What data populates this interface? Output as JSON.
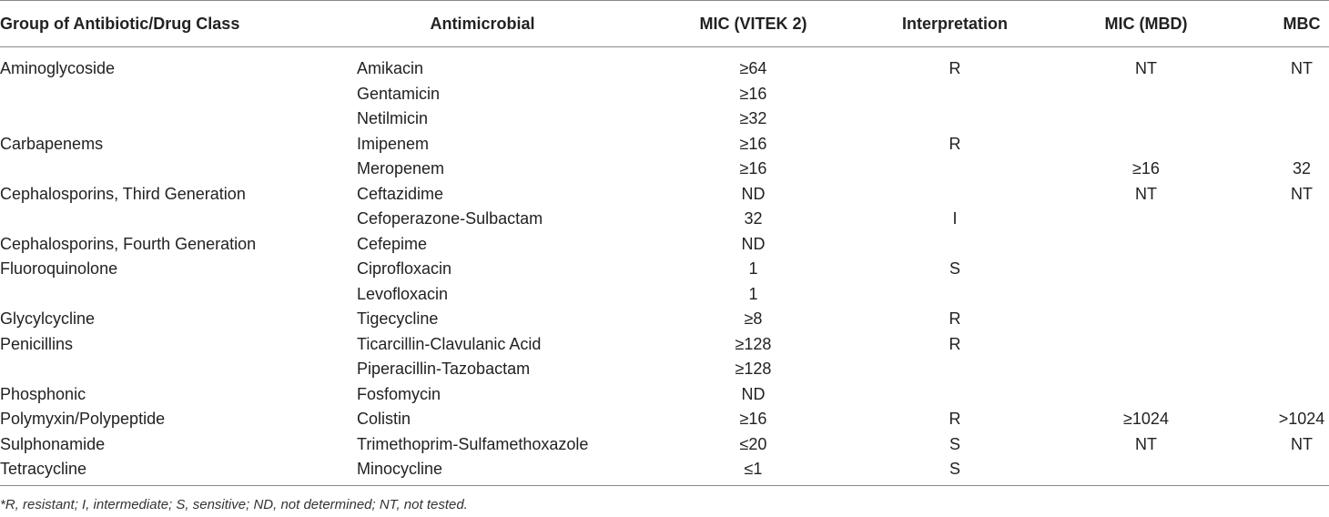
{
  "table": {
    "header": [
      "Group of Antibiotic/Drug Class",
      "Antimicrobial",
      "MIC (VITEK 2)",
      "Interpretation",
      "MIC (MBD)",
      "MBC"
    ],
    "rows": [
      [
        "Aminoglycoside",
        "Amikacin",
        "≥64",
        "R",
        "NT",
        "NT"
      ],
      [
        null,
        "Gentamicin",
        "≥16",
        null,
        null,
        null
      ],
      [
        null,
        "Netilmicin",
        "≥32",
        null,
        null,
        null
      ],
      [
        "Carbapenems",
        "Imipenem",
        "≥16",
        "R",
        null,
        null
      ],
      [
        null,
        "Meropenem",
        "≥16",
        null,
        "≥16",
        "32"
      ],
      [
        "Cephalosporins, Third Generation",
        "Ceftazidime",
        "ND",
        null,
        "NT",
        "NT"
      ],
      [
        null,
        "Cefoperazone-Sulbactam",
        "32",
        "I",
        null,
        null
      ],
      [
        "Cephalosporins, Fourth Generation",
        "Cefepime",
        "ND",
        null,
        null,
        null
      ],
      [
        "Fluoroquinolone",
        "Ciprofloxacin",
        "1",
        "S",
        null,
        null
      ],
      [
        null,
        "Levofloxacin",
        "1",
        null,
        null,
        null
      ],
      [
        "Glycylcycline",
        "Tigecycline",
        "≥8",
        "R",
        null,
        null
      ],
      [
        "Penicillins",
        "Ticarcillin-Clavulanic Acid",
        "≥128",
        "R",
        null,
        null
      ],
      [
        null,
        "Piperacillin-Tazobactam",
        "≥128",
        null,
        null,
        null
      ],
      [
        "Phosphonic",
        "Fosfomycin",
        "ND",
        null,
        null,
        null
      ],
      [
        "Polymyxin/Polypeptide",
        "Colistin",
        "≥16",
        "R",
        "≥1024",
        ">1024"
      ],
      [
        "Sulphonamide",
        "Trimethoprim-Sulfamethoxazole",
        "≤20",
        "S",
        "NT",
        "NT"
      ],
      [
        "Tetracycline",
        "Minocycline",
        "≤1",
        "S",
        null,
        null
      ]
    ],
    "footnote": "*R, resistant; I, intermediate; S, sensitive; ND, not determined; NT, not tested."
  }
}
